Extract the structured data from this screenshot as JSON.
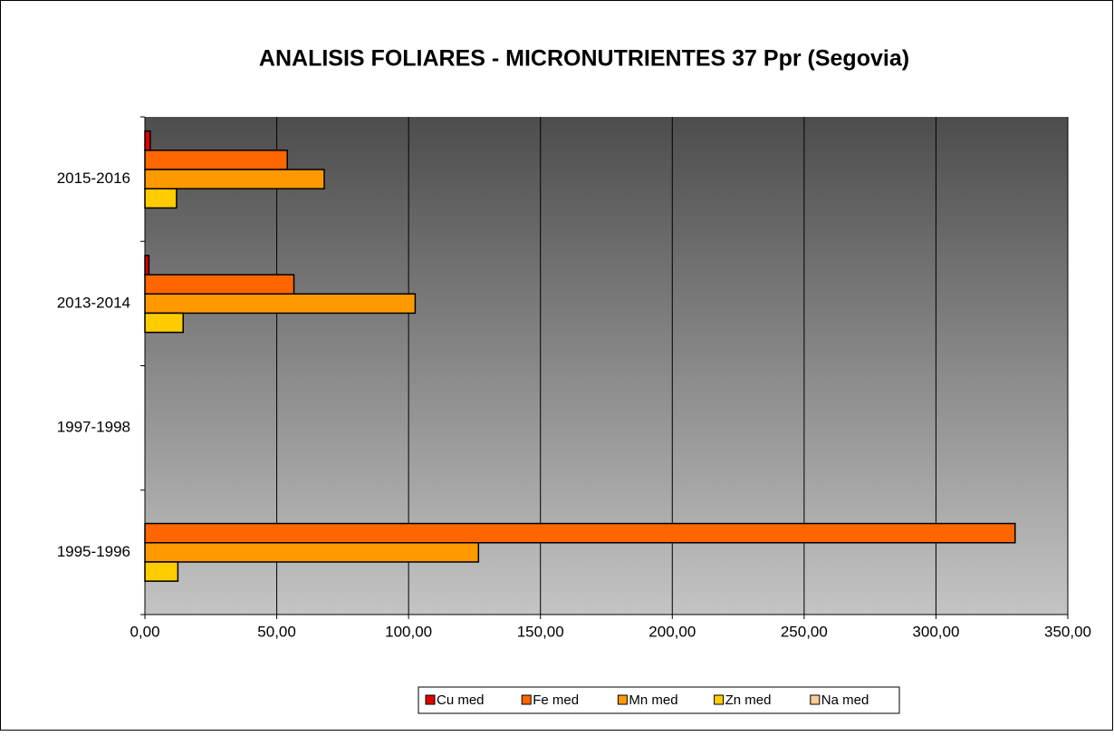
{
  "chart_data": {
    "type": "hbar",
    "title": "ANALISIS FOLIARES - MICRONUTRIENTES 37 Ppr (Segovia)",
    "categories": [
      "1995-1996",
      "1997-1998",
      "2013-2014",
      "2015-2016"
    ],
    "series": [
      {
        "name": "Cu med",
        "color": "#e00000",
        "values": [
          null,
          null,
          1.5,
          2
        ]
      },
      {
        "name": "Fe med",
        "color": "#ff6600",
        "values": [
          330,
          null,
          56.5,
          54
        ]
      },
      {
        "name": "Mn med",
        "color": "#ff9900",
        "values": [
          126.5,
          null,
          102.5,
          68
        ]
      },
      {
        "name": "Zn med",
        "color": "#ffcc00",
        "values": [
          12.5,
          null,
          14.5,
          12
        ]
      },
      {
        "name": "Na med",
        "color": "#ffcc99",
        "values": [
          null,
          null,
          null,
          null
        ]
      }
    ],
    "xlim": [
      0,
      350
    ],
    "xticks": [
      {
        "value": 0,
        "label": "0,00"
      },
      {
        "value": 50,
        "label": "50,00"
      },
      {
        "value": 100,
        "label": "100,00"
      },
      {
        "value": 150,
        "label": "150,00"
      },
      {
        "value": 200,
        "label": "200,00"
      },
      {
        "value": 250,
        "label": "250,00"
      },
      {
        "value": 300,
        "label": "300,00"
      },
      {
        "value": 350,
        "label": "350,00"
      }
    ],
    "grid": true,
    "legend": "bottom"
  }
}
